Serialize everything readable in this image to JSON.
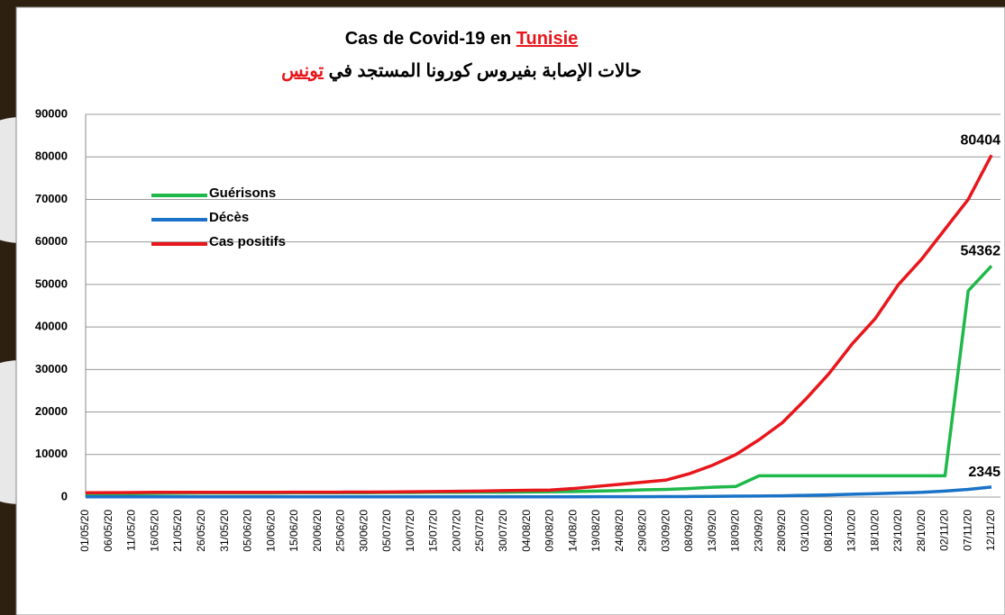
{
  "chart_data": {
    "type": "line",
    "title": "Cas de Covid-19 en",
    "title_highlight": "Tunisie",
    "subtitle": "حالات الإصابة بفيروس كورونا المستجد في",
    "subtitle_highlight": "تونس",
    "categories": [
      "01/05/20",
      "06/05/20",
      "11/05/20",
      "16/05/20",
      "21/05/20",
      "26/05/20",
      "31/05/20",
      "05/06/20",
      "10/06/20",
      "15/06/20",
      "20/06/20",
      "25/06/20",
      "30/06/20",
      "05/07/20",
      "10/07/20",
      "15/07/20",
      "20/07/20",
      "25/07/20",
      "30/07/20",
      "04/08/20",
      "09/08/20",
      "14/08/20",
      "19/08/20",
      "24/08/20",
      "29/08/20",
      "03/09/20",
      "08/09/20",
      "13/09/20",
      "18/09/20",
      "23/09/20",
      "28/09/20",
      "03/10/20",
      "08/10/20",
      "13/10/20",
      "18/10/20",
      "23/10/20",
      "28/10/20",
      "02/11/20",
      "07/11/20",
      "12/11/20"
    ],
    "series": [
      {
        "name": "Guérisons",
        "color": "#1fb84a",
        "values": [
          700,
          750,
          800,
          850,
          900,
          950,
          950,
          950,
          950,
          1000,
          1000,
          1000,
          1000,
          1050,
          1050,
          1100,
          1100,
          1150,
          1150,
          1200,
          1250,
          1300,
          1400,
          1500,
          1700,
          1800,
          2000,
          2300,
          2500,
          5000,
          5000,
          5000,
          5000,
          5000,
          5000,
          5000,
          5000,
          5000,
          48500,
          54362
        ]
      },
      {
        "name": "Décès",
        "color": "#1a73c8",
        "values": [
          40,
          45,
          45,
          48,
          48,
          48,
          49,
          49,
          50,
          50,
          50,
          50,
          50,
          50,
          50,
          50,
          50,
          50,
          50,
          50,
          55,
          60,
          70,
          80,
          90,
          100,
          120,
          150,
          200,
          250,
          300,
          400,
          500,
          650,
          800,
          950,
          1100,
          1400,
          1800,
          2345
        ]
      },
      {
        "name": "Cas positifs",
        "color": "#e8161c",
        "values": [
          1000,
          1030,
          1050,
          1100,
          1100,
          1100,
          1100,
          1100,
          1120,
          1130,
          1150,
          1150,
          1170,
          1200,
          1250,
          1300,
          1350,
          1400,
          1500,
          1600,
          1650,
          2000,
          2500,
          3000,
          3500,
          4000,
          5500,
          7500,
          10000,
          13500,
          17500,
          23000,
          29000,
          36000,
          42000,
          50000,
          56000,
          63000,
          70000,
          80404
        ]
      }
    ],
    "ylim": [
      0,
      90000
    ],
    "yticks": [
      0,
      10000,
      20000,
      30000,
      40000,
      50000,
      60000,
      70000,
      80000,
      90000
    ],
    "grid": true
  }
}
